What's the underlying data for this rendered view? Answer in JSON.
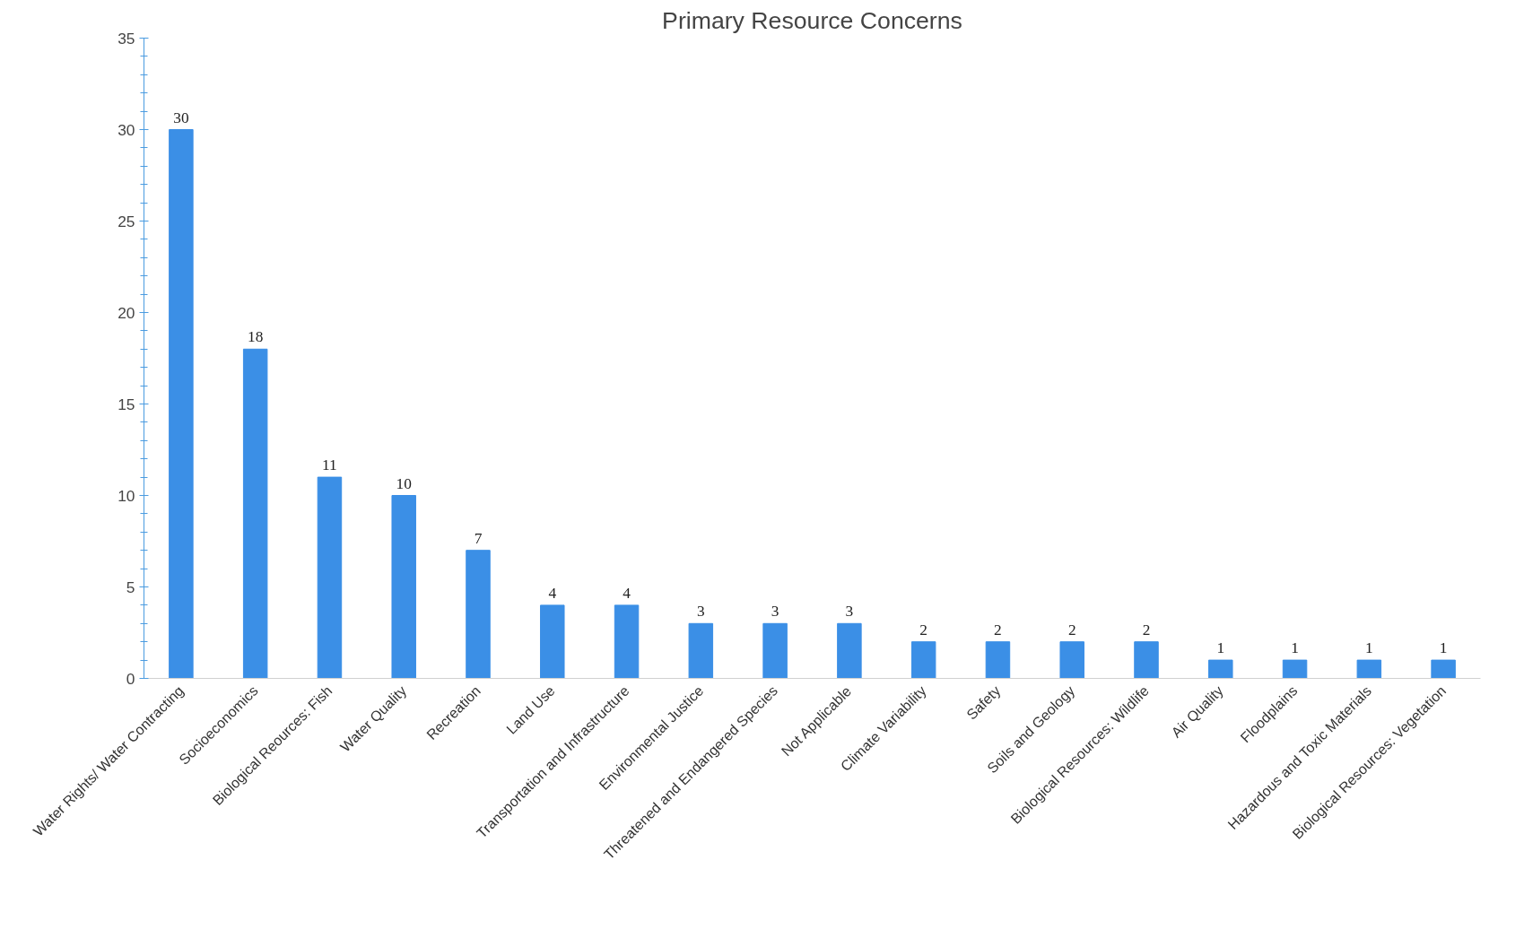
{
  "chart_data": {
    "type": "bar",
    "title": "Primary Resource Concerns",
    "categories": [
      "Water Rights/ Water Contracting",
      "Socioeconomics",
      "Biological Reources: Fish",
      "Water Quality",
      "Recreation",
      "Land Use",
      "Transportation and Infrastructure",
      "Environmental Justice",
      "Threatened and Endangered Species",
      "Not Applicable",
      "Climate Variability",
      "Safety",
      "Soils and Geology",
      "Biological Resources: Wildlife",
      "Air Quality",
      "Floodplains",
      "Hazardous and Toxic Materials",
      "Biological Resources: Vegetation"
    ],
    "values": [
      30,
      18,
      11,
      10,
      7,
      4,
      4,
      3,
      3,
      3,
      2,
      2,
      2,
      2,
      1,
      1,
      1,
      1
    ],
    "color": "#3b8fe6",
    "ylim": [
      0,
      35
    ],
    "yticks": [
      0,
      5,
      10,
      15,
      20,
      25,
      30,
      35
    ],
    "data_labels": true,
    "grid": false
  }
}
